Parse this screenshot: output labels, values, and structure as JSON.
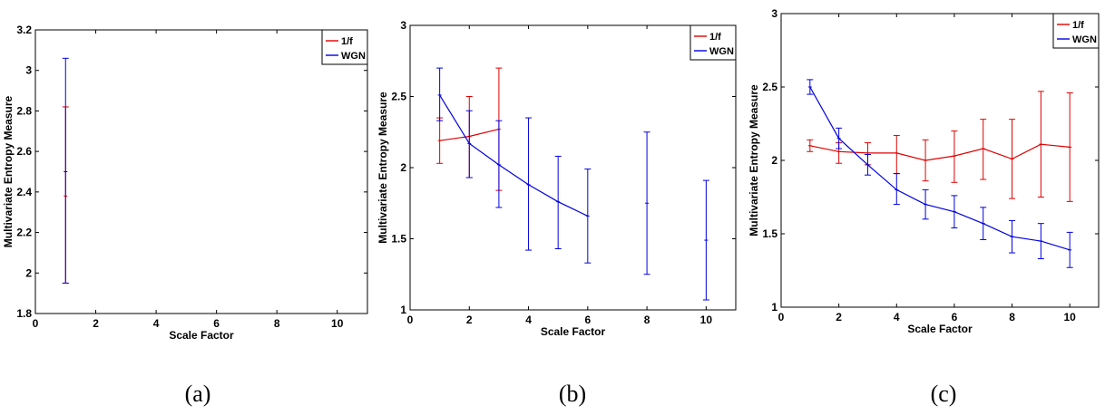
{
  "colors": {
    "one_over_f": "#e00000",
    "wgn": "#0000e0",
    "axis": "#000000"
  },
  "chart_data": [
    {
      "type": "line",
      "caption": "(a)",
      "xlabel": "Scale Factor",
      "ylabel": "Multivariate Entropy Measure",
      "xlim": [
        0,
        11
      ],
      "ylim": [
        1.8,
        3.2
      ],
      "xticks": [
        "0",
        "2",
        "4",
        "6",
        "8",
        "10"
      ],
      "yticks": [
        "1.8",
        "2",
        "2.2",
        "2.4",
        "2.6",
        "2.8",
        "3",
        "3.2"
      ],
      "legend": {
        "position": "top-right",
        "entries": [
          "1/f",
          "WGN"
        ]
      },
      "series": [
        {
          "name": "1/f",
          "color": "#e00000",
          "x": [
            1
          ],
          "y": [
            2.38
          ],
          "lower": [
            1.95
          ],
          "upper": [
            2.82
          ]
        },
        {
          "name": "WGN",
          "color": "#0000e0",
          "x": [
            1
          ],
          "y": [
            2.5
          ],
          "lower": [
            1.95
          ],
          "upper": [
            3.06
          ]
        }
      ]
    },
    {
      "type": "line",
      "caption": "(b)",
      "xlabel": "Scale Factor",
      "ylabel": "Multivariate Entropy Measure",
      "xlim": [
        0,
        11
      ],
      "ylim": [
        1,
        3
      ],
      "xticks": [
        "0",
        "2",
        "4",
        "6",
        "8",
        "10"
      ],
      "yticks": [
        "1",
        "1.5",
        "2",
        "2.5",
        "3"
      ],
      "legend": {
        "position": "top-right",
        "entries": [
          "1/f",
          "WGN"
        ]
      },
      "series": [
        {
          "name": "1/f",
          "color": "#e00000",
          "x": [
            1,
            2,
            3
          ],
          "y": [
            2.19,
            2.22,
            2.27
          ],
          "lower": [
            2.03,
            1.93,
            1.84
          ],
          "upper": [
            2.35,
            2.5,
            2.7
          ]
        },
        {
          "name": "WGN",
          "color": "#0000e0",
          "x": [
            1,
            2,
            3,
            4,
            5,
            6
          ],
          "y": [
            2.51,
            2.17,
            2.02,
            1.88,
            1.76,
            1.66
          ],
          "lower": [
            2.33,
            1.93,
            1.72,
            1.42,
            1.43,
            1.33
          ],
          "upper": [
            2.7,
            2.4,
            2.33,
            2.35,
            2.08,
            1.99
          ]
        },
        {
          "name": "WGN",
          "color": "#0000e0",
          "x": [
            8,
            10
          ],
          "y": [
            1.75,
            1.49
          ],
          "lower": [
            1.25,
            1.07
          ],
          "upper": [
            2.25,
            1.91
          ],
          "line": false
        }
      ]
    },
    {
      "type": "line",
      "caption": "(c)",
      "xlabel": "Scale Factor",
      "ylabel": "Multivariate Entropy Measure",
      "xlim": [
        0,
        11
      ],
      "ylim": [
        1,
        3
      ],
      "xticks": [
        "0",
        "2",
        "4",
        "6",
        "8",
        "10"
      ],
      "yticks": [
        "1",
        "1.5",
        "2",
        "2.5",
        "3"
      ],
      "legend": {
        "position": "top-right",
        "entries": [
          "1/f",
          "WGN"
        ]
      },
      "series": [
        {
          "name": "1/f",
          "color": "#e00000",
          "x": [
            1,
            2,
            3,
            4,
            5,
            6,
            7,
            8,
            9,
            10
          ],
          "y": [
            2.1,
            2.06,
            2.05,
            2.05,
            2.0,
            2.03,
            2.08,
            2.01,
            2.11,
            2.09
          ],
          "lower": [
            2.06,
            1.98,
            1.97,
            1.91,
            1.86,
            1.85,
            1.87,
            1.74,
            1.75,
            1.72
          ],
          "upper": [
            2.14,
            2.12,
            2.12,
            2.17,
            2.14,
            2.2,
            2.28,
            2.28,
            2.47,
            2.46
          ]
        },
        {
          "name": "WGN",
          "color": "#0000e0",
          "x": [
            1,
            2,
            3,
            4,
            5,
            6,
            7,
            8,
            9,
            10
          ],
          "y": [
            2.5,
            2.15,
            1.97,
            1.8,
            1.7,
            1.65,
            1.57,
            1.48,
            1.45,
            1.39
          ],
          "lower": [
            2.45,
            2.08,
            1.9,
            1.7,
            1.6,
            1.54,
            1.46,
            1.37,
            1.33,
            1.27
          ],
          "upper": [
            2.55,
            2.22,
            2.04,
            1.91,
            1.8,
            1.76,
            1.68,
            1.59,
            1.57,
            1.51
          ]
        }
      ]
    }
  ]
}
